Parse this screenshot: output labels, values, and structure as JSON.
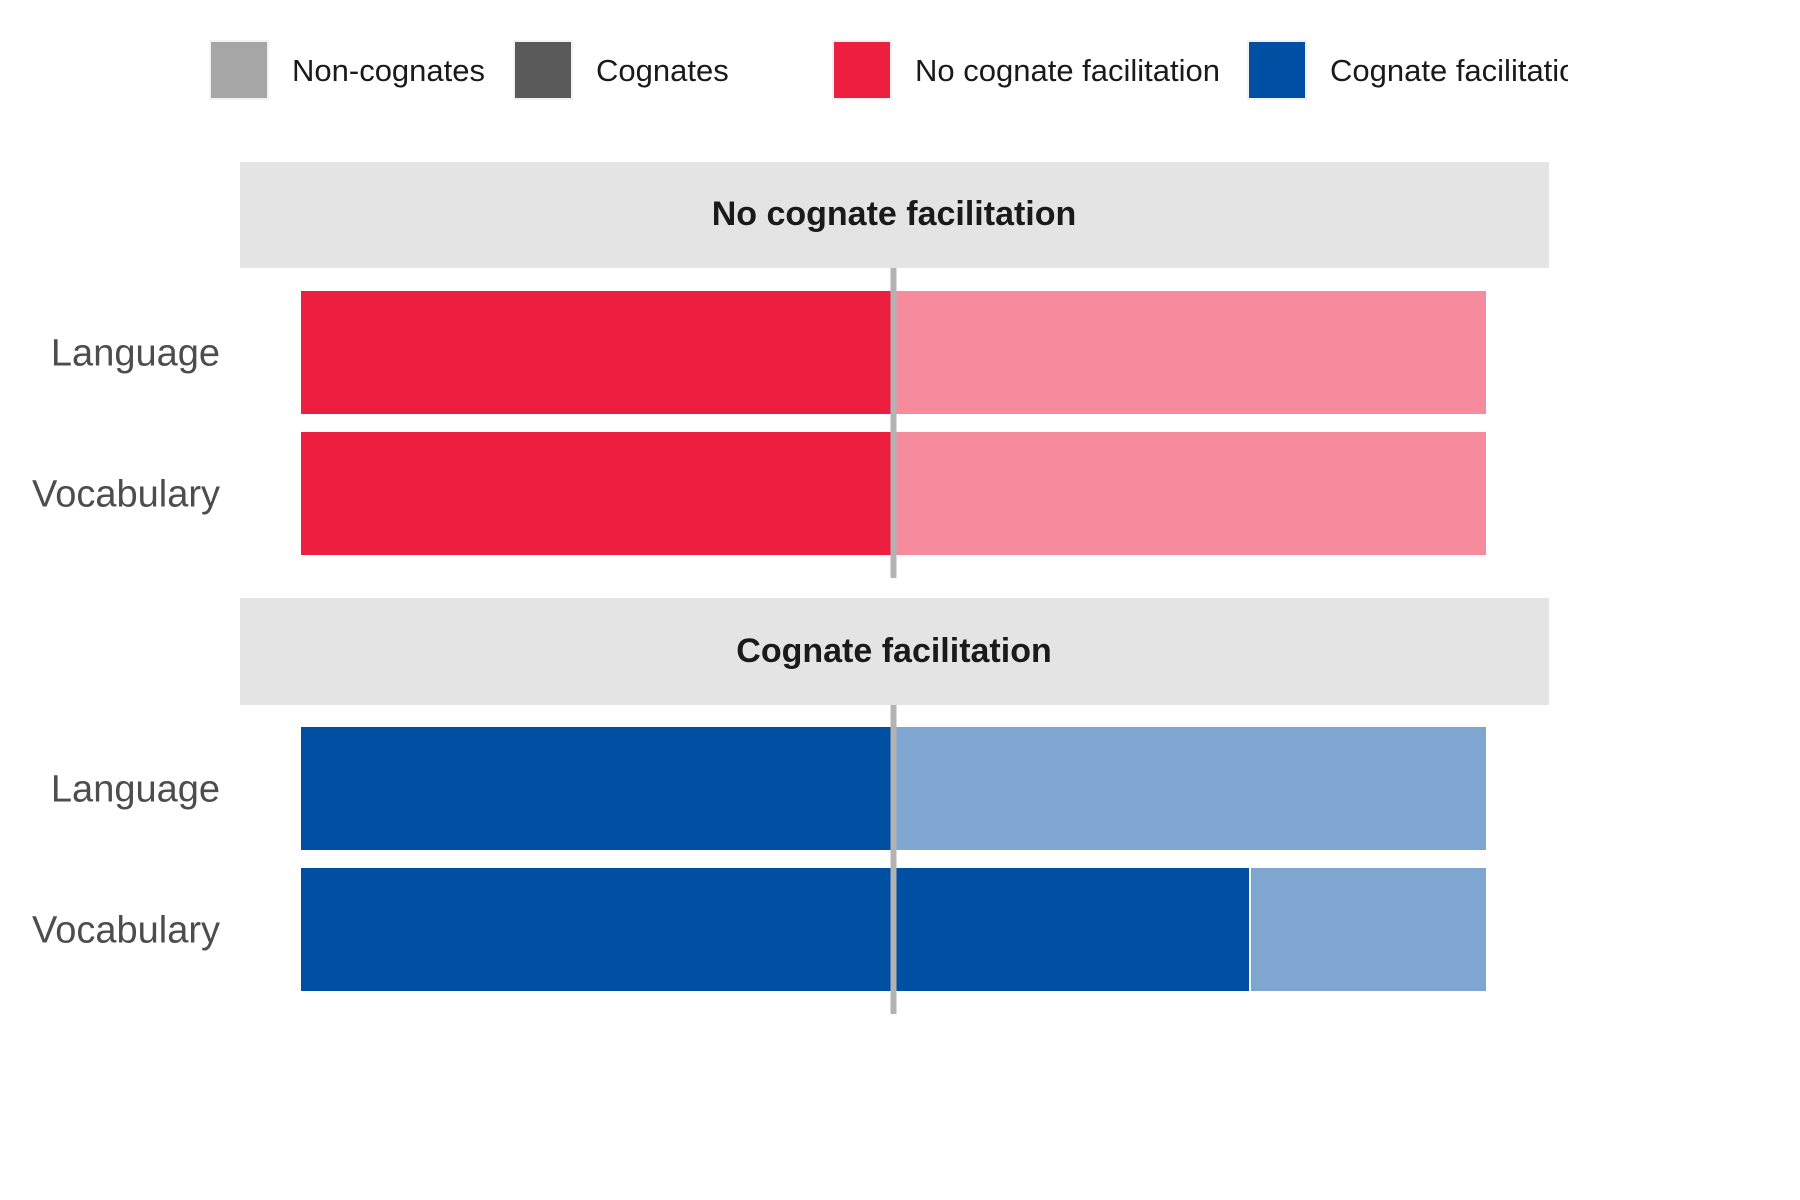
{
  "legend": [
    {
      "label": "Non-cognates",
      "color": "#a6a6a6"
    },
    {
      "label": "Cognates",
      "color": "#595959"
    },
    {
      "label": "No cognate facilitation",
      "color": "#ed1f41"
    },
    {
      "label": "Cognate facilitation",
      "color": "#004fa2"
    }
  ],
  "chart_data": {
    "type": "bar",
    "orientation": "horizontal",
    "stacked": true,
    "grid": false,
    "xlim": [
      0,
      1
    ],
    "center_reference_line": 0.5,
    "legend_position": "top",
    "categories": [
      "Language",
      "Vocabulary"
    ],
    "panels": [
      {
        "title": "No cognate facilitation",
        "dark_color": "#ed1f41",
        "light_color": "#f58b9c",
        "rows": [
          {
            "category": "Language",
            "segments": [
              {
                "value": 0.5,
                "shade": "dark"
              },
              {
                "value": 0.5,
                "shade": "light"
              }
            ]
          },
          {
            "category": "Vocabulary",
            "segments": [
              {
                "value": 0.5,
                "shade": "dark"
              },
              {
                "value": 0.5,
                "shade": "light"
              }
            ]
          }
        ]
      },
      {
        "title": "Cognate facilitation",
        "dark_color": "#004fa2",
        "light_color": "#7fa6d1",
        "rows": [
          {
            "category": "Language",
            "segments": [
              {
                "value": 0.5,
                "shade": "dark"
              },
              {
                "value": 0.5,
                "shade": "light"
              }
            ]
          },
          {
            "category": "Vocabulary",
            "segments": [
              {
                "value": 0.5,
                "shade": "dark"
              },
              {
                "value": 0.3,
                "shade": "dark"
              },
              {
                "value": 0.2,
                "shade": "light"
              }
            ]
          }
        ]
      }
    ]
  }
}
